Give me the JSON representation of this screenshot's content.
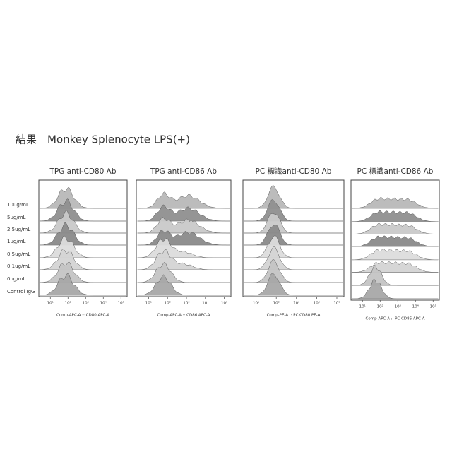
{
  "header": {
    "title": "結果　Monkey Splenocyte LPS(+)"
  },
  "row_labels": [
    "10ug/mL",
    "5ug/mL",
    "2.5ug/mL",
    "1ug/mL",
    "0.5ug/mL",
    "0.1ug/mL",
    "0ug/mL",
    "Control IgG"
  ],
  "panels": [
    {
      "title": "TPG anti-CD80 Ab",
      "axis_label": "Comp-APC-A :: CD80 APC-A",
      "ticks": [
        "10¹",
        "10²",
        "10³",
        "10⁴",
        "10⁵"
      ]
    },
    {
      "title": "TPG anti-CD86 Ab",
      "axis_label": "Comp-APC-A :: CD86 APC-A",
      "ticks": [
        "10¹",
        "10²",
        "10³",
        "10⁴",
        "10⁵"
      ]
    },
    {
      "title": "PC 標識anti-CD80 Ab",
      "axis_label": "Comp-PE-A :: PC CD80 PE-A",
      "ticks": [
        "10¹",
        "10²",
        "10³",
        "10⁴",
        "10⁵"
      ]
    },
    {
      "title": "PC 標識anti-CD86 Ab",
      "axis_label": "Comp-APC-A :: PC CD86 APC-A",
      "ticks": [
        "10¹",
        "10²",
        "10³",
        "10⁴",
        "10⁵"
      ]
    }
  ]
}
